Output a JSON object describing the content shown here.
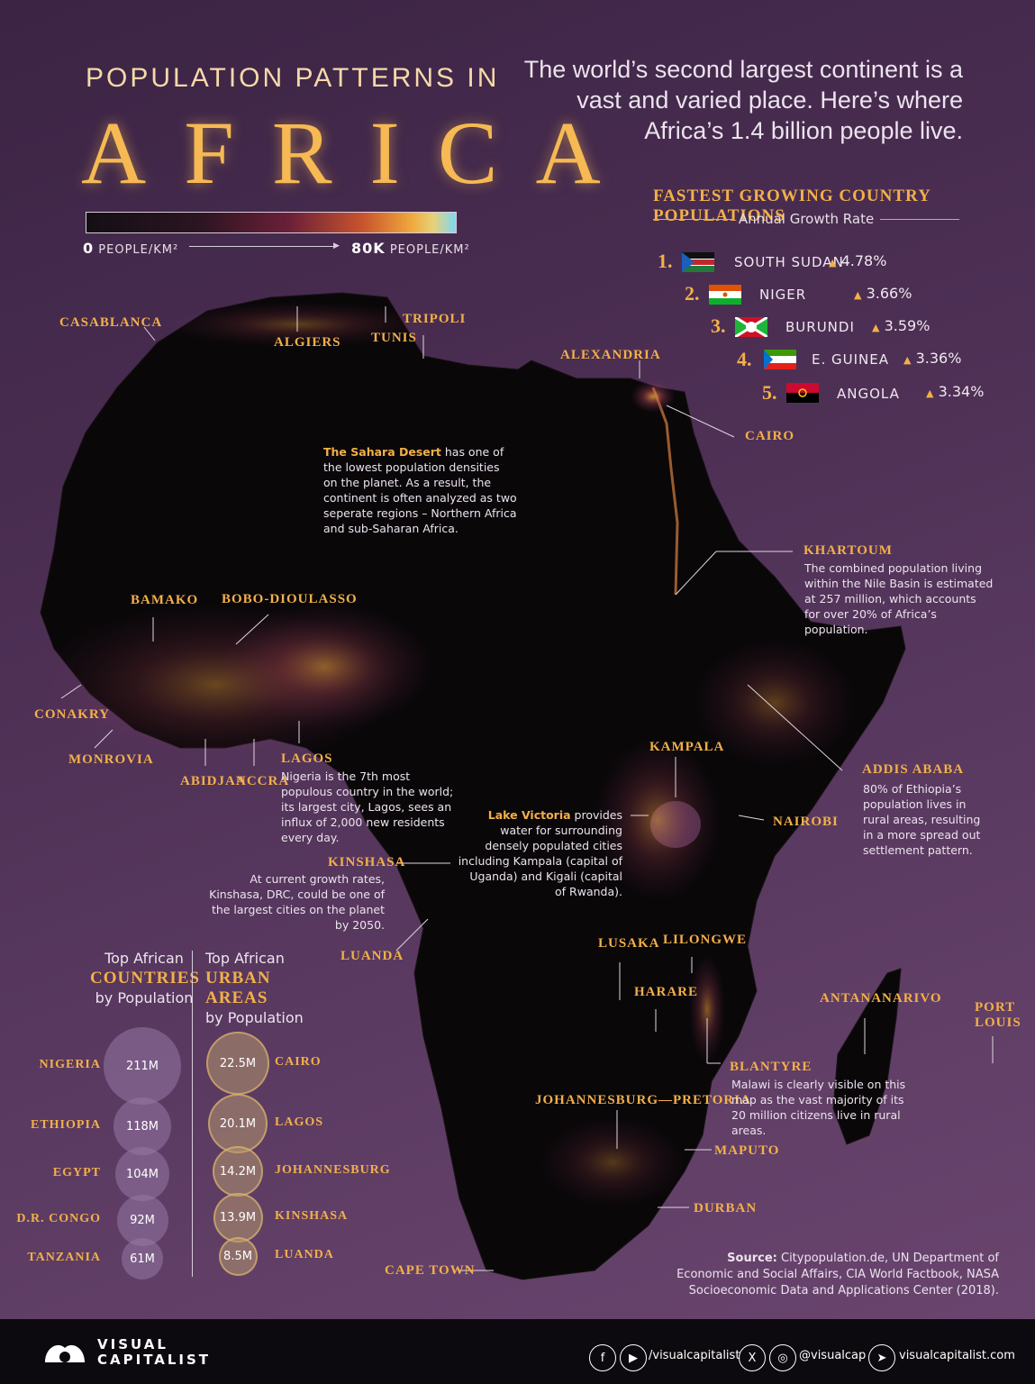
{
  "title": {
    "line1": "POPULATION PATTERNS IN",
    "line2": "AFRICA"
  },
  "subtitle": "The world’s second largest continent is a vast and varied place. Here’s where Africa’s 1.4 billion people live.",
  "legend": {
    "min_value": "0",
    "min_unit": "PEOPLE/KM²",
    "max_value": "80K",
    "max_unit": "PEOPLE/KM²"
  },
  "growth": {
    "title": "FASTEST GROWING COUNTRY POPULATIONS",
    "subtitle": "Annual Growth Rate",
    "items": [
      {
        "rank": "1.",
        "country": "SOUTH SUDAN",
        "rate": "4.78%",
        "flag": "south-sudan-flag"
      },
      {
        "rank": "2.",
        "country": "NIGER",
        "rate": "3.66%",
        "flag": "niger-flag"
      },
      {
        "rank": "3.",
        "country": "BURUNDI",
        "rate": "3.59%",
        "flag": "burundi-flag"
      },
      {
        "rank": "4.",
        "country": "E. GUINEA",
        "rate": "3.36%",
        "flag": "equatorial-guinea-flag"
      },
      {
        "rank": "5.",
        "country": "ANGOLA",
        "rate": "3.34%",
        "flag": "angola-flag"
      }
    ]
  },
  "cities": {
    "casablanca": "CASABLANCA",
    "algiers": "ALGIERS",
    "tunis": "TUNIS",
    "tripoli": "TRIPOLI",
    "alexandria": "ALEXANDRIA",
    "cairo": "CAIRO",
    "khartoum": "KHARTOUM",
    "bamako": "BAMAKO",
    "bobo": "BOBO-DIOULASSO",
    "conakry": "CONAKRY",
    "monrovia": "MONROVIA",
    "abidjan": "ABIDJAN",
    "accra": "ACCRA",
    "lagos": "LAGOS",
    "kampala": "KAMPALA",
    "addis": "ADDIS ABABA",
    "nairobi": "NAIROBI",
    "kinshasa": "KINSHASA",
    "luanda": "LUANDA",
    "lusaka": "LUSAKA",
    "lilongwe": "LILONGWE",
    "harare": "HARARE",
    "blantyre": "BLANTYRE",
    "antananarivo": "ANTANANARIVO",
    "port_louis": "PORT LOUIS",
    "johannesburg": "JOHANNESBURG—PRETORIA",
    "maputo": "MAPUTO",
    "durban": "DURBAN",
    "cape_town": "CAPE TOWN"
  },
  "annotations": {
    "sahara_bold": "The Sahara Desert",
    "sahara_rest": " has one of the lowest population densities on the planet. As a result, the continent is often analyzed as two seperate regions – Northern Africa and sub-Saharan Africa.",
    "khartoum": "The combined population living within the Nile Basin is estimated at 257 million, which accounts for over 20% of Africa’s population.",
    "lagos": "Nigeria is the 7th most populous country in the world; its largest city, Lagos, sees an influx of 2,000 new residents every day.",
    "addis": "80% of Ethiopia’s population lives in rural areas, resulting in a more spread out settlement pattern.",
    "victoria_bold": "Lake Victoria",
    "victoria_rest": " provides water for surrounding densely populated cities including Kampala (capital of Uganda) and Kigali (capital of Rwanda).",
    "kinshasa": "At current growth rates, Kinshasa, DRC, could be one of the largest cities on the planet by 2050.",
    "blantyre": "Malawi is clearly visible on this map as the vast majority of its 20 million citizens live in rural areas."
  },
  "top_countries": {
    "head1": "Top African",
    "head2": "COUNTRIES",
    "head3": "by Population",
    "items": [
      {
        "name": "NIGERIA",
        "value": "211M",
        "num": 211
      },
      {
        "name": "ETHIOPIA",
        "value": "118M",
        "num": 118
      },
      {
        "name": "EGYPT",
        "value": "104M",
        "num": 104
      },
      {
        "name": "D.R. CONGO",
        "value": "92M",
        "num": 92
      },
      {
        "name": "TANZANIA",
        "value": "61M",
        "num": 61
      }
    ]
  },
  "top_urban": {
    "head1": "Top African",
    "head2": "URBAN AREAS",
    "head3": "by Population",
    "items": [
      {
        "name": "CAIRO",
        "value": "22.5M",
        "num": 22.5
      },
      {
        "name": "LAGOS",
        "value": "20.1M",
        "num": 20.1
      },
      {
        "name": "JOHANNESBURG",
        "value": "14.2M",
        "num": 14.2
      },
      {
        "name": "KINSHASA",
        "value": "13.9M",
        "num": 13.9
      },
      {
        "name": "LUANDA",
        "value": "8.5M",
        "num": 8.5
      }
    ]
  },
  "source": {
    "label": "Source:",
    "text": " Citypopulation.de, UN Department of Economic and Social Affairs, CIA World Factbook, NASA Socioeconomic Data and Applications Center (2018)."
  },
  "footer": {
    "brand1": "VISUAL",
    "brand2": "CAPITALIST",
    "handle1": "/visualcapitalist",
    "handle2": "@visualcap",
    "site": "visualcapitalist.com"
  },
  "colors": {
    "accent": "#f2b04a",
    "background": "#4e3055",
    "land": "#0a0709"
  }
}
